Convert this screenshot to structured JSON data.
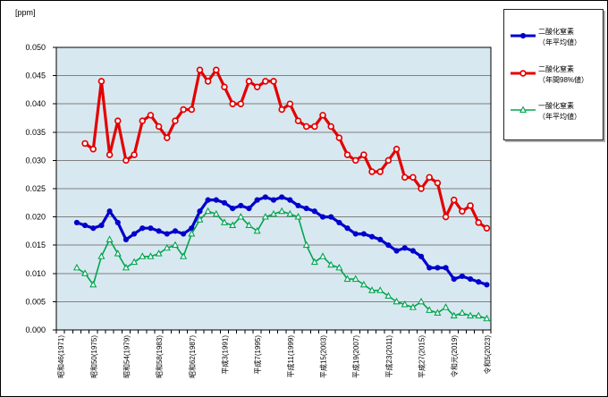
{
  "chart_data": {
    "type": "line",
    "title": "",
    "unit_label": "[ppm]",
    "ylim": [
      0,
      0.05
    ],
    "y_tick_step": 0.005,
    "y_tick_decimals": 3,
    "grid": "horizontal-only",
    "grid_color": "#808080",
    "plot_bg": "#d8e8f0",
    "axis_color": "#000000",
    "legend_position": "outside-top-right",
    "categories": [
      1971,
      1972,
      1973,
      1974,
      1975,
      1976,
      1977,
      1978,
      1979,
      1980,
      1981,
      1982,
      1983,
      1984,
      1985,
      1986,
      1987,
      1988,
      1989,
      1990,
      1991,
      1992,
      1993,
      1994,
      1995,
      1996,
      1997,
      1998,
      1999,
      2000,
      2001,
      2002,
      2003,
      2004,
      2005,
      2006,
      2007,
      2008,
      2009,
      2010,
      2011,
      2012,
      2013,
      2014,
      2015,
      2016,
      2017,
      2018,
      2019,
      2020,
      2021,
      2022,
      2023
    ],
    "x_tick_labels": [
      {
        "index": 0,
        "label": "昭和46(1971)"
      },
      {
        "index": 4,
        "label": "昭和50(1975)"
      },
      {
        "index": 8,
        "label": "昭和54(1979)"
      },
      {
        "index": 12,
        "label": "昭和58(1983)"
      },
      {
        "index": 16,
        "label": "昭和62(1987)"
      },
      {
        "index": 20,
        "label": "平成3(1991)"
      },
      {
        "index": 24,
        "label": "平成7(1995)"
      },
      {
        "index": 28,
        "label": "平成11(1999)"
      },
      {
        "index": 32,
        "label": "平成15(2003)"
      },
      {
        "index": 36,
        "label": "平成19(2007)"
      },
      {
        "index": 40,
        "label": "平成23(2011)"
      },
      {
        "index": 44,
        "label": "平成27(2015)"
      },
      {
        "index": 48,
        "label": "令和元(2019)"
      },
      {
        "index": 52,
        "label": "令和5(2023)"
      }
    ],
    "series": [
      {
        "id": "no2-annual-avg",
        "name": "二酸化窒素",
        "qualifier": "（年平均値）",
        "color": "#0000CC",
        "marker": "filled-circle",
        "line_width": 3.2,
        "values": [
          null,
          null,
          0.019,
          0.0185,
          0.018,
          0.0185,
          0.021,
          0.019,
          0.016,
          0.017,
          0.018,
          0.018,
          0.0175,
          0.017,
          0.0175,
          0.017,
          0.018,
          0.021,
          0.023,
          0.023,
          0.0225,
          0.0215,
          0.022,
          0.0215,
          0.023,
          0.0235,
          0.023,
          0.0235,
          0.023,
          0.022,
          0.0215,
          0.021,
          0.02,
          0.02,
          0.019,
          0.018,
          0.017,
          0.017,
          0.0165,
          0.016,
          0.015,
          0.014,
          0.0145,
          0.014,
          0.013,
          0.011,
          0.011,
          0.011,
          0.009,
          0.0095,
          0.009,
          0.0085,
          0.008
        ]
      },
      {
        "id": "no2-annual-98pct",
        "name": "二酸化窒素",
        "qualifier": "（年間98%値）",
        "color": "#E30000",
        "marker": "open-circle",
        "line_width": 3.2,
        "values": [
          null,
          null,
          null,
          0.033,
          0.032,
          0.044,
          0.031,
          0.037,
          0.03,
          0.031,
          0.037,
          0.038,
          0.036,
          0.034,
          0.037,
          0.039,
          0.039,
          0.046,
          0.044,
          0.046,
          0.043,
          0.04,
          0.04,
          0.044,
          0.043,
          0.044,
          0.044,
          0.039,
          0.04,
          0.037,
          0.036,
          0.036,
          0.038,
          0.036,
          0.034,
          0.031,
          0.03,
          0.031,
          0.028,
          0.028,
          0.03,
          0.032,
          0.027,
          0.027,
          0.025,
          0.027,
          0.026,
          0.02,
          0.023,
          0.021,
          0.022,
          0.019,
          0.018
        ]
      },
      {
        "id": "no-annual-avg",
        "name": "一酸化窒素",
        "qualifier": "（年平均値）",
        "color": "#00A550",
        "marker": "open-triangle",
        "line_width": 1.6,
        "values": [
          null,
          null,
          0.011,
          0.01,
          0.008,
          0.013,
          0.016,
          0.0135,
          0.011,
          0.012,
          0.013,
          0.013,
          0.0135,
          0.0145,
          0.015,
          0.013,
          0.017,
          0.0195,
          0.021,
          0.0205,
          0.019,
          0.0185,
          0.02,
          0.0185,
          0.0175,
          0.02,
          0.0205,
          0.021,
          0.0205,
          0.02,
          0.015,
          0.012,
          0.013,
          0.0115,
          0.011,
          0.009,
          0.009,
          0.008,
          0.007,
          0.007,
          0.006,
          0.005,
          0.0045,
          0.004,
          0.005,
          0.0035,
          0.003,
          0.004,
          0.0025,
          0.003,
          0.0025,
          0.0025,
          0.002
        ]
      }
    ]
  }
}
